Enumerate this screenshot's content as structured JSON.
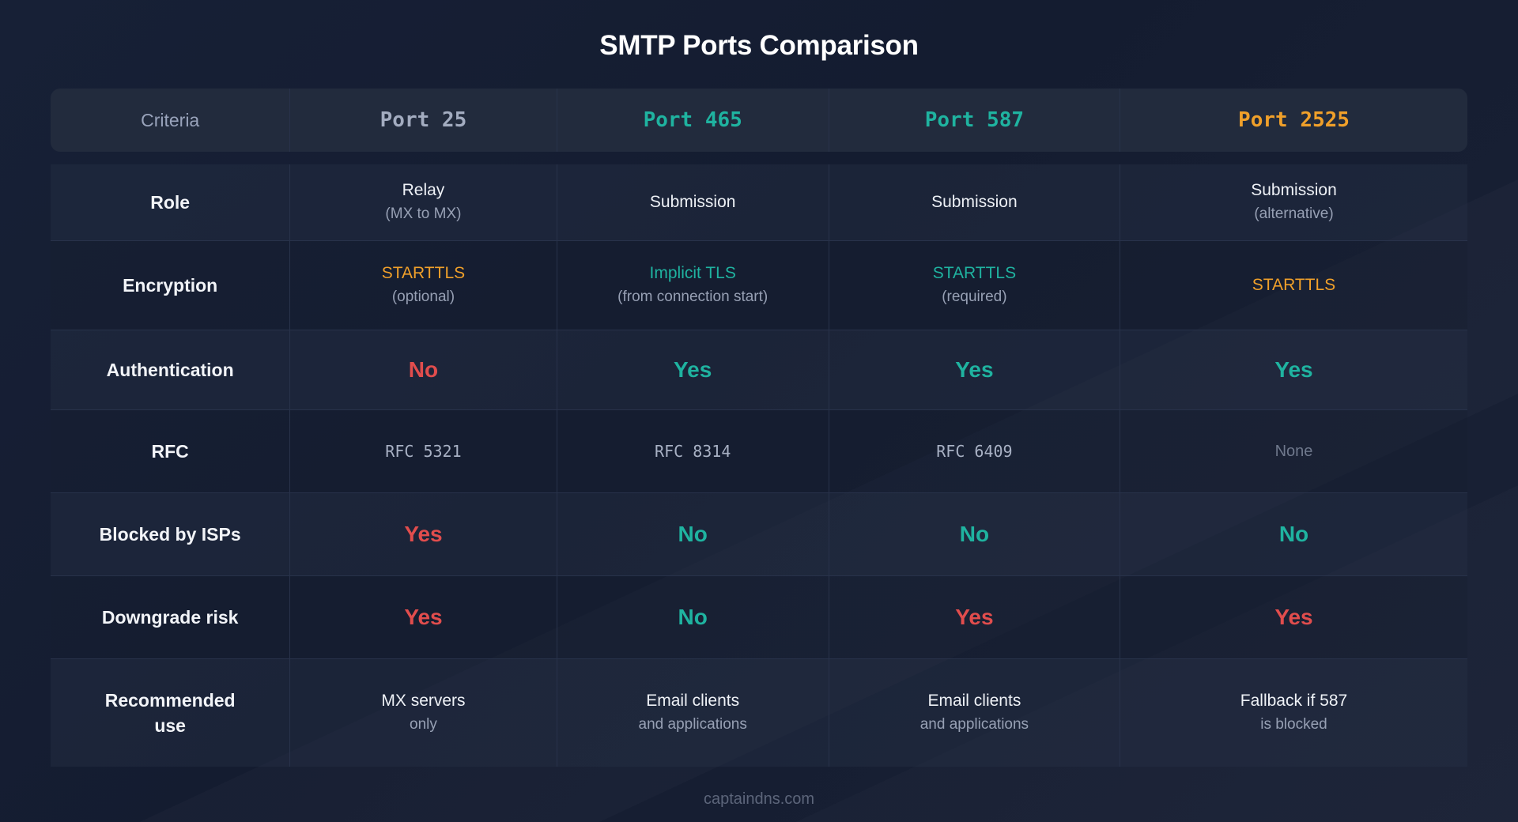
{
  "title": "SMTP Ports Comparison",
  "colors": {
    "gray": "#a3acc0",
    "teal": "#1fb3a0",
    "orange": "#f0a02a",
    "red": "#e14d4d"
  },
  "header": {
    "criteria": "Criteria",
    "ports": [
      {
        "label": "Port 25",
        "color": "#a3acc0"
      },
      {
        "label": "Port 465",
        "color": "#1fb3a0"
      },
      {
        "label": "Port 587",
        "color": "#1fb3a0"
      },
      {
        "label": "Port 2525",
        "color": "#f0a02a"
      }
    ]
  },
  "rows": [
    {
      "label": "Role",
      "cells": [
        {
          "main": "Relay",
          "sub": "(MX to MX)"
        },
        {
          "main": "Submission",
          "sub": ""
        },
        {
          "main": "Submission",
          "sub": ""
        },
        {
          "main": "Submission",
          "sub": "(alternative)"
        }
      ]
    },
    {
      "label": "Encryption",
      "cells": [
        {
          "main": "STARTTLS",
          "sub": "(optional)",
          "color": "#f0a02a"
        },
        {
          "main": "Implicit TLS",
          "sub": "(from connection start)",
          "color": "#1fb3a0"
        },
        {
          "main": "STARTTLS",
          "sub": "(required)",
          "color": "#1fb3a0"
        },
        {
          "main": "STARTTLS",
          "sub": "",
          "color": "#f0a02a"
        }
      ]
    },
    {
      "label": "Authentication",
      "cells": [
        {
          "main": "No",
          "color": "#e14d4d"
        },
        {
          "main": "Yes",
          "color": "#1fb3a0"
        },
        {
          "main": "Yes",
          "color": "#1fb3a0"
        },
        {
          "main": "Yes",
          "color": "#1fb3a0"
        }
      ]
    },
    {
      "label": "RFC",
      "cells": [
        {
          "main": "RFC 5321"
        },
        {
          "main": "RFC 8314"
        },
        {
          "main": "RFC 6409"
        },
        {
          "main": "None"
        }
      ]
    },
    {
      "label": "Blocked by ISPs",
      "cells": [
        {
          "main": "Yes",
          "color": "#e14d4d"
        },
        {
          "main": "No",
          "color": "#1fb3a0"
        },
        {
          "main": "No",
          "color": "#1fb3a0"
        },
        {
          "main": "No",
          "color": "#1fb3a0"
        }
      ]
    },
    {
      "label": "Downgrade risk",
      "cells": [
        {
          "main": "Yes",
          "color": "#e14d4d"
        },
        {
          "main": "No",
          "color": "#1fb3a0"
        },
        {
          "main": "Yes",
          "color": "#e14d4d"
        },
        {
          "main": "Yes",
          "color": "#e14d4d"
        }
      ]
    },
    {
      "label_line1": "Recommended",
      "label_line2": "use",
      "cells": [
        {
          "main": "MX servers",
          "sub": "only"
        },
        {
          "main": "Email clients",
          "sub": "and applications"
        },
        {
          "main": "Email clients",
          "sub": "and applications"
        },
        {
          "main": "Fallback if 587",
          "sub": "is blocked"
        }
      ]
    }
  ],
  "footer": "captaindns.com"
}
